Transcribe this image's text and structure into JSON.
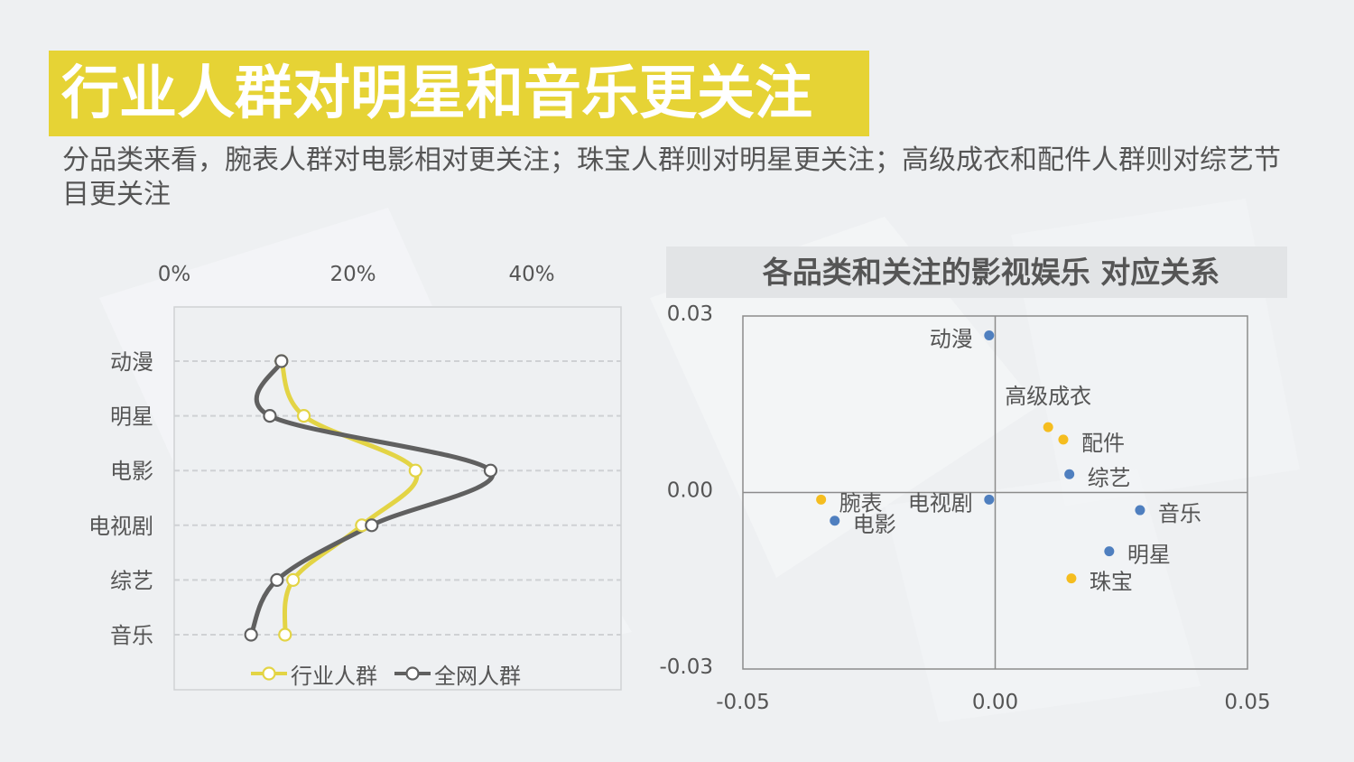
{
  "header": {
    "title": "行业人群对明星和音乐更关注",
    "subtitle": "分品类来看，腕表人群对电影相对更关注；珠宝人群则对明星更关注；高级成衣和配件人群则对综艺节目更关注"
  },
  "colors": {
    "accent": "#e6d335",
    "industry_line": "#e3d445",
    "all_line": "#606060",
    "blue_point": "#4f7fbf",
    "yellow_point": "#f5bd1f",
    "text": "#555555"
  },
  "chart_data": [
    {
      "type": "line",
      "orientation": "horizontal-values",
      "categories": [
        "动漫",
        "明星",
        "电影",
        "电视剧",
        "综艺",
        "音乐"
      ],
      "x_ticks": [
        "0%",
        "20%",
        "40%"
      ],
      "xlim": [
        0,
        0.5
      ],
      "series": [
        {
          "name": "行业人群",
          "values": [
            0.12,
            0.145,
            0.27,
            0.21,
            0.133,
            0.124
          ]
        },
        {
          "name": "全网人群",
          "values": [
            0.12,
            0.107,
            0.354,
            0.221,
            0.115,
            0.086
          ]
        }
      ],
      "grid": "horizontal-dashed",
      "legend": "bottom"
    },
    {
      "type": "scatter",
      "title": "各品类和关注的影视娱乐 对应关系",
      "xlim": [
        -0.05,
        0.05
      ],
      "ylim": [
        -0.03,
        0.03
      ],
      "x_ticks": [
        "-0.05",
        "0.00",
        "0.05"
      ],
      "y_ticks": [
        "0.03",
        "0.00",
        "-0.03"
      ],
      "points": [
        {
          "label": "动漫",
          "x": -0.0012,
          "y": 0.0267,
          "group": "entertainment"
        },
        {
          "label": "综艺",
          "x": 0.0147,
          "y": 0.0031,
          "group": "entertainment"
        },
        {
          "label": "电视剧",
          "x": -0.0012,
          "y": -0.0012,
          "group": "entertainment"
        },
        {
          "label": "电影",
          "x": -0.0318,
          "y": -0.0048,
          "group": "entertainment"
        },
        {
          "label": "音乐",
          "x": 0.0287,
          "y": -0.003,
          "group": "entertainment"
        },
        {
          "label": "明星",
          "x": 0.0226,
          "y": -0.01,
          "group": "entertainment"
        },
        {
          "label": "高级成衣",
          "x": 0.0105,
          "y": 0.0111,
          "group": "category"
        },
        {
          "label": "配件",
          "x": 0.0135,
          "y": 0.009,
          "group": "category"
        },
        {
          "label": "腕表",
          "x": -0.0345,
          "y": -0.0012,
          "group": "category"
        },
        {
          "label": "珠宝",
          "x": 0.0151,
          "y": -0.0146,
          "group": "category"
        }
      ]
    }
  ]
}
